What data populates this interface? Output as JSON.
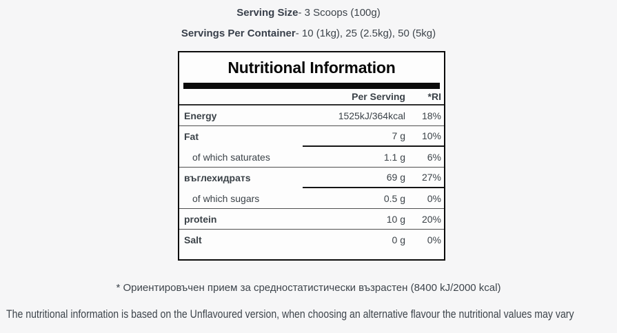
{
  "page": {
    "serving_size": {
      "label": "Serving Size",
      "value": "- 3 Scoops (100g)"
    },
    "servings_per_container": {
      "label": "Servings Per Container",
      "value": "- 10 (1kg), 25 (2.5kg), 50 (5kg)"
    },
    "footnote": "* Ориентировъчен прием за средностатистически възрастен (8400 kJ/2000 kcal)",
    "disclaimer": "The nutritional information is based on the Unflavoured version, when choosing an alternative flavour the nutritional values may vary"
  },
  "table": {
    "title": "Nutritional Information",
    "columns": {
      "per_serving": "Per Serving",
      "ri": "*RI"
    },
    "rows": [
      {
        "label": "Energy",
        "per_serving": "1525kJ/364kcal",
        "ri": "18%",
        "style": "main",
        "divider": "full"
      },
      {
        "label": "Fat",
        "per_serving": "7 g",
        "ri": "10%",
        "style": "main",
        "divider": "partial"
      },
      {
        "label": "of which saturates",
        "per_serving": "1.1 g",
        "ri": "6%",
        "style": "sub",
        "divider": "full"
      },
      {
        "label": "въглехидратs",
        "per_serving": "69 g",
        "ri": "27%",
        "style": "main",
        "divider": "partial"
      },
      {
        "label": "of which sugars",
        "per_serving": "0.5 g",
        "ri": "0%",
        "style": "sub",
        "divider": "full"
      },
      {
        "label": "protein",
        "per_serving": "10 g",
        "ri": "20%",
        "style": "main",
        "divider": "full"
      },
      {
        "label": "Salt",
        "per_serving": "0 g",
        "ri": "0%",
        "style": "main",
        "divider": "none"
      }
    ]
  },
  "colors": {
    "page_background": "#f6f6f7",
    "table_background": "#fdfdfd",
    "table_border": "#0a0a0a",
    "text": "#3c434a",
    "title_text": "#060606"
  }
}
